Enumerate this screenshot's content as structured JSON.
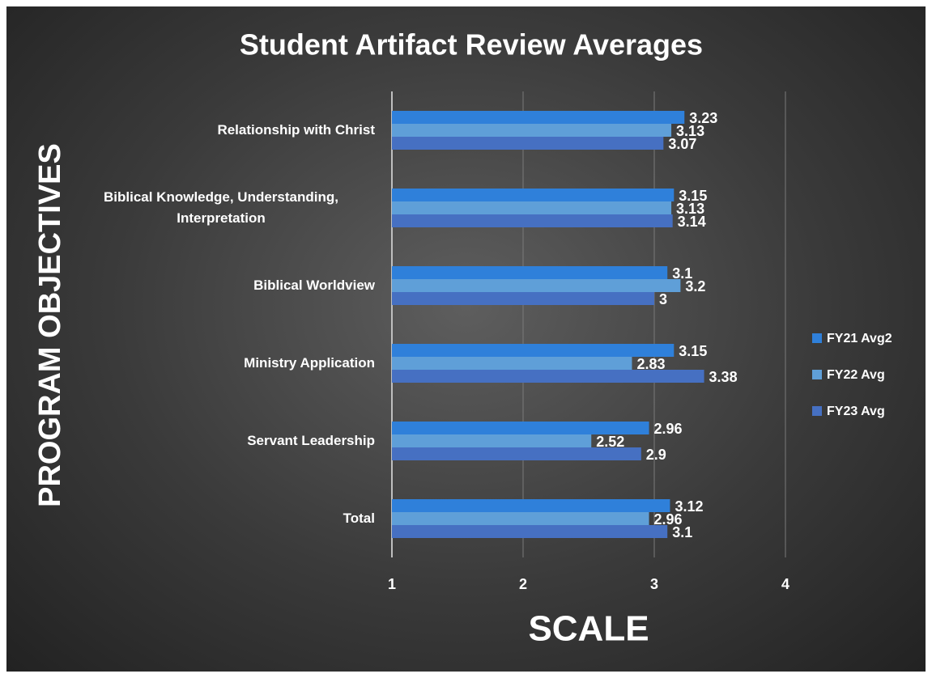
{
  "chart_data": {
    "type": "hbar",
    "title": "Student Artifact Review Averages",
    "x_label": "SCALE",
    "y_label": "PROGRAM OBJECTIVES",
    "categories": [
      "Relationship with Christ",
      "Biblical Knowledge, Understanding, Interpretation",
      "Biblical Worldview",
      "Ministry Application",
      "Servant Leadership",
      "Total"
    ],
    "series": [
      {
        "name": "FY21 Avg2",
        "color": "#2f80da",
        "values": [
          3.23,
          3.15,
          3.1,
          3.15,
          2.96,
          3.12
        ]
      },
      {
        "name": "FY22 Avg",
        "color": "#5f9fd8",
        "values": [
          3.13,
          3.13,
          3.2,
          2.83,
          2.52,
          2.96
        ]
      },
      {
        "name": "FY23 Avg",
        "color": "#4670c2",
        "values": [
          3.07,
          3.14,
          3,
          3.38,
          2.9,
          3.1
        ]
      }
    ],
    "xlim": [
      1,
      4
    ],
    "xticks": [
      1,
      2,
      3,
      4
    ],
    "grid": true,
    "legend": "right"
  }
}
